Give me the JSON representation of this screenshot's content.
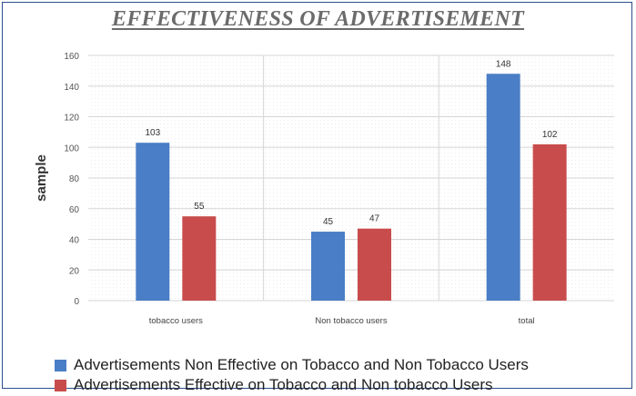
{
  "chart_data": {
    "type": "bar",
    "title": "EFFECTIVENESS OF ADVERTISEMENT",
    "ylabel": "sample",
    "xlabel": "",
    "categories": [
      "tobacco users",
      "Non tobacco users",
      "total"
    ],
    "series": [
      {
        "name": "Advertisements Non Effective on Tobacco and Non Tobacco Users",
        "values": [
          103,
          45,
          148
        ],
        "color": "#4a7ec6"
      },
      {
        "name": "Advertisements  Effective on Tobacco and Non tobacco Users",
        "values": [
          55,
          47,
          102
        ],
        "color": "#c94c4c"
      }
    ],
    "ylim": [
      0,
      160
    ],
    "yticks": [
      0,
      20,
      40,
      60,
      80,
      100,
      120,
      140,
      160
    ],
    "grid": true,
    "legend": "bottom"
  }
}
